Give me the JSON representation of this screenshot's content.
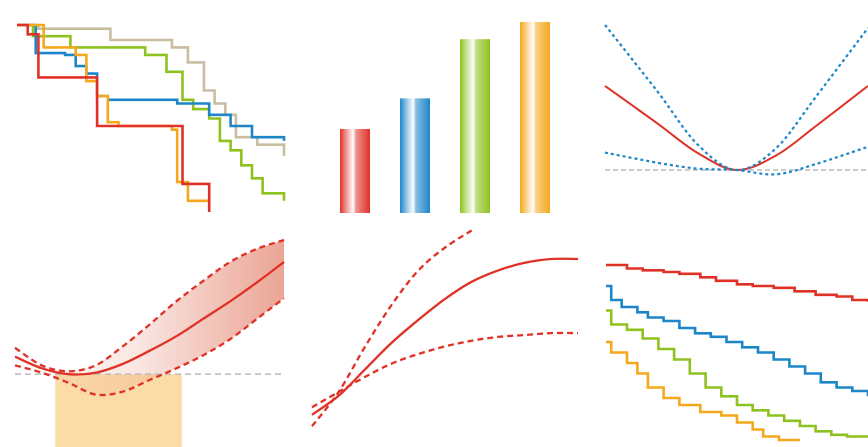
{
  "colors": {
    "red": "#e03127",
    "blue": "#1d86c8",
    "green": "#8dc21f",
    "orange": "#f5a81c",
    "tan": "#c9bda0",
    "gray": "#bbbbbb",
    "band": "#eaa08f",
    "highlight": "#fbdca7"
  },
  "chart_data": [
    {
      "type": "line",
      "subtype": "step",
      "x_range": [
        0,
        1
      ],
      "y_range": [
        0,
        1
      ],
      "series": [
        {
          "color": "tan",
          "x": [
            0,
            0.08,
            0.35,
            0.58,
            0.64,
            0.7,
            0.74,
            0.78,
            0.82,
            0.9,
            1.0
          ],
          "y": [
            1,
            0.98,
            0.92,
            0.88,
            0.8,
            0.65,
            0.58,
            0.52,
            0.4,
            0.36,
            0.3
          ]
        },
        {
          "color": "green",
          "x": [
            0,
            0.06,
            0.2,
            0.48,
            0.56,
            0.62,
            0.66,
            0.72,
            0.76,
            0.8,
            0.84,
            0.88,
            0.92,
            1.0
          ],
          "y": [
            1,
            0.94,
            0.88,
            0.84,
            0.75,
            0.6,
            0.55,
            0.5,
            0.38,
            0.33,
            0.25,
            0.18,
            0.1,
            0.06
          ]
        },
        {
          "color": "blue",
          "x": [
            0,
            0.07,
            0.18,
            0.22,
            0.26,
            0.3,
            0.34,
            0.6,
            0.72,
            0.8,
            0.88,
            1.0
          ],
          "y": [
            1,
            0.85,
            0.84,
            0.78,
            0.74,
            0.62,
            0.6,
            0.58,
            0.52,
            0.46,
            0.4,
            0.38
          ]
        },
        {
          "color": "orange",
          "x": [
            0,
            0.1,
            0.22,
            0.26,
            0.3,
            0.34,
            0.38,
            0.58,
            0.6,
            0.64,
            0.72
          ],
          "y": [
            1,
            0.88,
            0.84,
            0.7,
            0.62,
            0.48,
            0.46,
            0.44,
            0.16,
            0.06,
            0.02
          ]
        },
        {
          "color": "red",
          "x": [
            0,
            0.04,
            0.08,
            0.26,
            0.3,
            0.58,
            0.62,
            0.7,
            0.72
          ],
          "y": [
            1,
            0.95,
            0.72,
            0.72,
            0.46,
            0.46,
            0.15,
            0.15,
            0.0
          ]
        }
      ]
    },
    {
      "type": "bar",
      "categories": [
        "",
        "",
        "",
        ""
      ],
      "values": [
        0.44,
        0.6,
        0.91,
        1.0
      ],
      "colors": [
        "red",
        "blue",
        "green",
        "orange"
      ],
      "ylim": [
        0,
        1
      ]
    },
    {
      "type": "line",
      "series": [
        {
          "color": "red",
          "style": "solid",
          "x": [
            -1,
            -0.6,
            -0.3,
            0,
            0.3,
            0.6,
            1
          ],
          "y": [
            0.58,
            0.32,
            0.12,
            0.0,
            0.1,
            0.3,
            0.58
          ]
        },
        {
          "color": "blue",
          "style": "dotted",
          "x": [
            -1,
            -0.6,
            -0.3,
            0,
            0.3,
            0.6,
            1
          ],
          "y": [
            1.0,
            0.54,
            0.18,
            0.0,
            0.15,
            0.5,
            0.98
          ]
        },
        {
          "color": "blue",
          "style": "dotted",
          "x": [
            -1,
            -0.6,
            -0.3,
            0,
            0.3,
            0.6,
            1
          ],
          "y": [
            0.12,
            0.05,
            0.01,
            0.0,
            -0.03,
            0.04,
            0.16
          ]
        }
      ],
      "baseline": 0,
      "xlim": [
        -1,
        1
      ],
      "ylim": [
        -0.15,
        1.0
      ]
    },
    {
      "type": "area",
      "series": [
        {
          "color": "red",
          "style": "solid",
          "x": [
            0,
            0.1,
            0.2,
            0.3,
            0.4,
            0.5,
            0.6,
            0.7,
            0.8,
            0.9,
            1.0
          ],
          "y": [
            0.2,
            0.12,
            0.08,
            0.09,
            0.15,
            0.24,
            0.34,
            0.46,
            0.58,
            0.71,
            0.85
          ]
        },
        {
          "color": "red",
          "style": "dashed",
          "x": [
            0,
            0.1,
            0.2,
            0.3,
            0.4,
            0.5,
            0.6,
            0.7,
            0.8,
            0.9,
            1.0
          ],
          "y": [
            0.26,
            0.14,
            0.1,
            0.14,
            0.27,
            0.42,
            0.58,
            0.72,
            0.85,
            0.94,
            1.0
          ]
        },
        {
          "color": "red",
          "style": "dashed",
          "x": [
            0,
            0.1,
            0.2,
            0.3,
            0.4,
            0.5,
            0.6,
            0.7,
            0.8,
            0.9,
            1.0
          ],
          "y": [
            0.14,
            0.09,
            0.02,
            -0.06,
            -0.04,
            0.04,
            0.12,
            0.21,
            0.32,
            0.46,
            0.6
          ]
        }
      ],
      "baseline": 0.08,
      "highlight_x": [
        0.15,
        0.62
      ],
      "xlim": [
        0,
        1
      ],
      "ylim": [
        -0.2,
        1.0
      ]
    },
    {
      "type": "line",
      "series": [
        {
          "color": "red",
          "style": "solid",
          "x": [
            0,
            0.1,
            0.2,
            0.3,
            0.4,
            0.5,
            0.6,
            0.7,
            0.8,
            0.9,
            1.0
          ],
          "y": [
            0.08,
            0.18,
            0.32,
            0.46,
            0.58,
            0.69,
            0.78,
            0.84,
            0.88,
            0.9,
            0.9
          ]
        },
        {
          "color": "red",
          "style": "dashed",
          "x": [
            0,
            0.1,
            0.2,
            0.3,
            0.4,
            0.5,
            0.6
          ],
          "y": [
            0.02,
            0.2,
            0.44,
            0.66,
            0.84,
            0.96,
            1.05
          ]
        },
        {
          "color": "red",
          "style": "dashed",
          "x": [
            0,
            0.1,
            0.2,
            0.3,
            0.4,
            0.5,
            0.6,
            0.7,
            0.8,
            0.9,
            1.0
          ],
          "y": [
            0.12,
            0.2,
            0.28,
            0.35,
            0.4,
            0.44,
            0.47,
            0.49,
            0.5,
            0.51,
            0.51
          ]
        }
      ],
      "xlim": [
        0,
        1
      ],
      "ylim": [
        0,
        1
      ]
    },
    {
      "type": "line",
      "subtype": "step",
      "xlim": [
        0,
        1
      ],
      "ylim": [
        0,
        1
      ],
      "series": [
        {
          "color": "red",
          "x": [
            0,
            0.08,
            0.14,
            0.22,
            0.28,
            0.36,
            0.42,
            0.5,
            0.56,
            0.64,
            0.72,
            0.8,
            0.88,
            0.94,
            1.0
          ],
          "y": [
            1.0,
            0.98,
            0.97,
            0.96,
            0.95,
            0.93,
            0.91,
            0.89,
            0.88,
            0.87,
            0.85,
            0.83,
            0.82,
            0.8,
            0.79
          ]
        },
        {
          "color": "blue",
          "x": [
            0,
            0.02,
            0.06,
            0.12,
            0.16,
            0.22,
            0.28,
            0.34,
            0.4,
            0.46,
            0.52,
            0.58,
            0.64,
            0.7,
            0.76,
            0.82,
            0.88,
            0.94,
            1.0
          ],
          "y": [
            0.88,
            0.8,
            0.76,
            0.73,
            0.7,
            0.68,
            0.64,
            0.61,
            0.59,
            0.56,
            0.53,
            0.5,
            0.46,
            0.42,
            0.38,
            0.33,
            0.3,
            0.28,
            0.25
          ]
        },
        {
          "color": "green",
          "x": [
            0,
            0.02,
            0.08,
            0.14,
            0.2,
            0.26,
            0.32,
            0.38,
            0.44,
            0.5,
            0.56,
            0.62,
            0.68,
            0.74,
            0.8,
            0.86,
            0.92,
            1.0
          ],
          "y": [
            0.74,
            0.66,
            0.63,
            0.58,
            0.52,
            0.46,
            0.38,
            0.3,
            0.25,
            0.2,
            0.17,
            0.14,
            0.11,
            0.08,
            0.05,
            0.03,
            0.02,
            0.02
          ]
        },
        {
          "color": "orange",
          "x": [
            0,
            0.02,
            0.08,
            0.12,
            0.16,
            0.22,
            0.28,
            0.36,
            0.44,
            0.5,
            0.56,
            0.6,
            0.66,
            0.74
          ],
          "y": [
            0.56,
            0.5,
            0.44,
            0.38,
            0.3,
            0.24,
            0.2,
            0.16,
            0.14,
            0.1,
            0.06,
            0.02,
            0.0,
            0.0
          ]
        }
      ]
    }
  ]
}
